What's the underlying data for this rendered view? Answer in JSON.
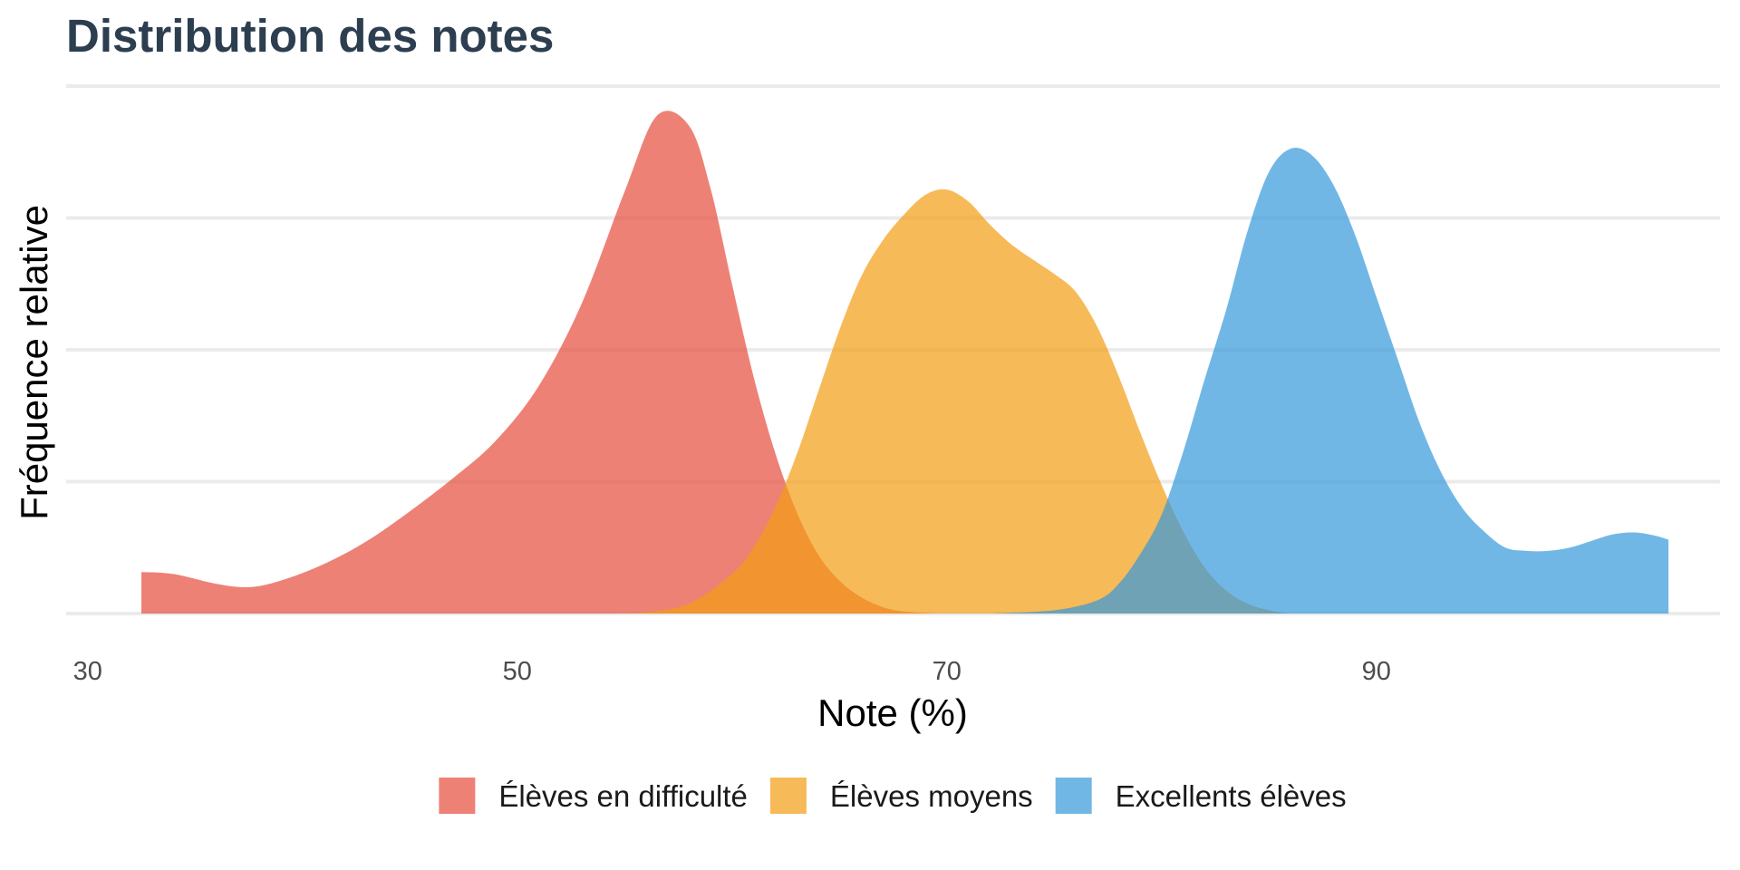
{
  "chart_data": {
    "type": "area",
    "title": "Distribution des notes",
    "xlabel": "Note (%)",
    "ylabel": "Fréquence relative",
    "xlim": [
      29,
      106
    ],
    "ylim": [
      0,
      0.08
    ],
    "x_ticks": [
      30,
      50,
      70,
      90
    ],
    "y_gridlines": [
      0,
      0.02,
      0.04,
      0.06,
      0.08
    ],
    "y_tick_labels_shown": false,
    "grid": true,
    "legend_position": "bottom",
    "series": [
      {
        "name": "Élèves en difficulté",
        "color": "#e74c3c",
        "opacity": 0.7,
        "points": [
          [
            32.5,
            0.0063
          ],
          [
            34,
            0.006
          ],
          [
            36,
            0.0045
          ],
          [
            37.5,
            0.004
          ],
          [
            39,
            0.005
          ],
          [
            41,
            0.0075
          ],
          [
            43,
            0.011
          ],
          [
            45,
            0.0155
          ],
          [
            47,
            0.0205
          ],
          [
            49,
            0.0262
          ],
          [
            51,
            0.0345
          ],
          [
            53,
            0.047
          ],
          [
            55,
            0.064
          ],
          [
            56.5,
            0.0755
          ],
          [
            58,
            0.074
          ],
          [
            59,
            0.0645
          ],
          [
            60,
            0.05
          ],
          [
            61,
            0.036
          ],
          [
            62,
            0.0245
          ],
          [
            63,
            0.0155
          ],
          [
            64,
            0.009
          ],
          [
            65,
            0.005
          ],
          [
            66,
            0.0025
          ],
          [
            67,
            0.001
          ],
          [
            68,
            0.0003
          ],
          [
            69.5,
            0.0
          ]
        ]
      },
      {
        "name": "Élèves moyens",
        "color": "#f39c12",
        "opacity": 0.7,
        "points": [
          [
            54,
            0.0
          ],
          [
            56,
            0.0002
          ],
          [
            58,
            0.0015
          ],
          [
            60,
            0.006
          ],
          [
            61,
            0.01
          ],
          [
            62,
            0.016
          ],
          [
            63,
            0.024
          ],
          [
            64,
            0.0335
          ],
          [
            65,
            0.043
          ],
          [
            66,
            0.051
          ],
          [
            67,
            0.0565
          ],
          [
            68,
            0.0605
          ],
          [
            69,
            0.0635
          ],
          [
            70,
            0.0643
          ],
          [
            71,
            0.0625
          ],
          [
            72,
            0.059
          ],
          [
            73,
            0.056
          ],
          [
            74,
            0.0537
          ],
          [
            75,
            0.0515
          ],
          [
            76,
            0.0488
          ],
          [
            77,
            0.0435
          ],
          [
            78,
            0.036
          ],
          [
            79,
            0.0275
          ],
          [
            80,
            0.0195
          ],
          [
            81,
            0.0125
          ],
          [
            82,
            0.007
          ],
          [
            83,
            0.0035
          ],
          [
            84,
            0.0015
          ],
          [
            85,
            0.0005
          ],
          [
            86,
            0.0
          ]
        ]
      },
      {
        "name": "Excellents élèves",
        "color": "#3498db",
        "opacity": 0.7,
        "points": [
          [
            72,
            0.0
          ],
          [
            75,
            0.0005
          ],
          [
            77,
            0.002
          ],
          [
            78,
            0.0045
          ],
          [
            79,
            0.009
          ],
          [
            80,
            0.015
          ],
          [
            81,
            0.0245
          ],
          [
            82,
            0.0355
          ],
          [
            83,
            0.046
          ],
          [
            84,
            0.058
          ],
          [
            85,
            0.067
          ],
          [
            86,
            0.0705
          ],
          [
            87,
            0.0695
          ],
          [
            88,
            0.065
          ],
          [
            89,
            0.0575
          ],
          [
            90,
            0.048
          ],
          [
            91,
            0.0385
          ],
          [
            92,
            0.029
          ],
          [
            93,
            0.0215
          ],
          [
            94,
            0.016
          ],
          [
            95,
            0.0125
          ],
          [
            96,
            0.01
          ],
          [
            97,
            0.0095
          ],
          [
            98,
            0.0095
          ],
          [
            99,
            0.01
          ],
          [
            100,
            0.011
          ],
          [
            101,
            0.012
          ],
          [
            102,
            0.0123
          ],
          [
            103,
            0.0118
          ],
          [
            103.6,
            0.0112
          ]
        ]
      }
    ]
  }
}
